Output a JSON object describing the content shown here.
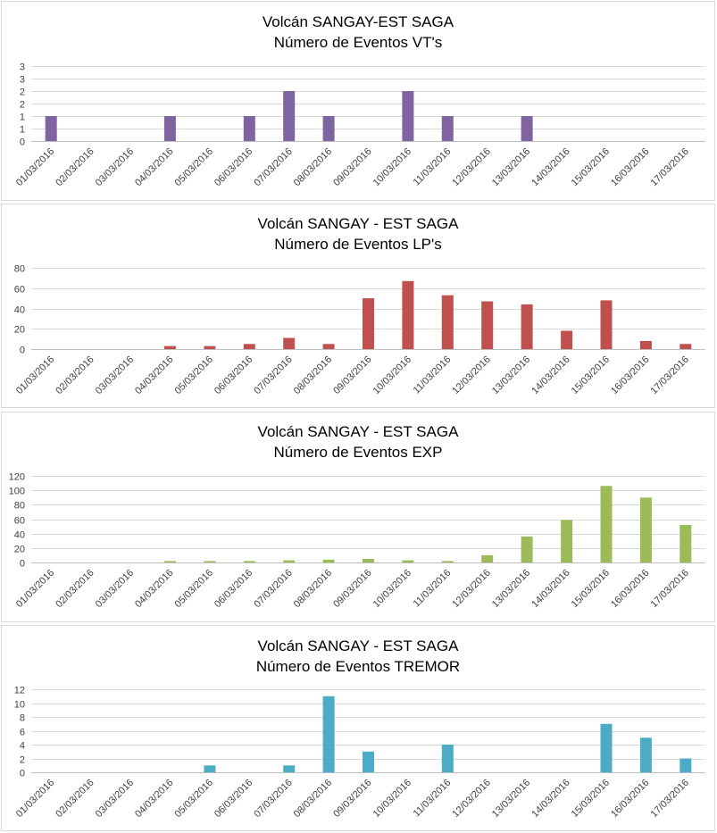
{
  "chart_data": [
    {
      "type": "bar",
      "title": "Volcán SANGAY-EST SAGA",
      "subtitle": "Número de Eventos VT's",
      "categories": [
        "01/03/2016",
        "02/03/2016",
        "03/03/2016",
        "04/03/2016",
        "05/03/2016",
        "06/03/2016",
        "07/03/2016",
        "08/03/2016",
        "09/03/2016",
        "10/03/2016",
        "11/03/2016",
        "12/03/2016",
        "13/03/2016",
        "14/03/2016",
        "15/03/2016",
        "16/03/2016",
        "17/03/2016"
      ],
      "values": [
        1,
        0,
        0,
        1,
        0,
        1,
        2,
        1,
        0,
        2,
        1,
        0,
        1,
        0,
        0,
        0,
        0
      ],
      "ylim": [
        0,
        3
      ],
      "yticks": [
        0,
        0.5,
        1,
        1.5,
        2,
        2.5,
        3
      ],
      "ytick_labels": [
        "0",
        "1",
        "1",
        "2",
        "2",
        "3",
        "3"
      ],
      "color": "#8064A2",
      "grid": true,
      "legend": "none"
    },
    {
      "type": "bar",
      "title": "Volcán SANGAY  - EST SAGA",
      "subtitle": "Número de Eventos LP's",
      "categories": [
        "01/03/2016",
        "02/03/2016",
        "03/03/2016",
        "04/03/2016",
        "05/03/2016",
        "06/03/2016",
        "07/03/2016",
        "08/03/2016",
        "09/03/2016",
        "10/03/2016",
        "11/03/2016",
        "12/03/2016",
        "13/03/2016",
        "14/03/2016",
        "15/03/2016",
        "16/03/2016",
        "17/03/2016"
      ],
      "values": [
        0,
        0,
        0,
        3,
        3,
        5,
        11,
        5,
        50,
        67,
        53,
        47,
        44,
        18,
        48,
        8,
        5
      ],
      "ylim": [
        0,
        80
      ],
      "yticks": [
        0,
        20,
        40,
        60,
        80
      ],
      "ytick_labels": [
        "0",
        "20",
        "40",
        "60",
        "80"
      ],
      "color": "#C0504D",
      "grid": true,
      "legend": "none"
    },
    {
      "type": "bar",
      "title": "Volcán SANGAY - EST SAGA",
      "subtitle": "Número de Eventos EXP",
      "categories": [
        "01/03/2016",
        "02/03/2016",
        "03/03/2016",
        "04/03/2016",
        "05/03/2016",
        "06/03/2016",
        "07/03/2016",
        "08/03/2016",
        "09/03/2016",
        "10/03/2016",
        "11/03/2016",
        "12/03/2016",
        "13/03/2016",
        "14/03/2016",
        "15/03/2016",
        "16/03/2016",
        "17/03/2016"
      ],
      "values": [
        0,
        0,
        0,
        2,
        2,
        2,
        3,
        4,
        5,
        3,
        2,
        10,
        36,
        59,
        106,
        90,
        52
      ],
      "ylim": [
        0,
        120
      ],
      "yticks": [
        0,
        20,
        40,
        60,
        80,
        100,
        120
      ],
      "ytick_labels": [
        "0",
        "20",
        "40",
        "60",
        "80",
        "100",
        "120"
      ],
      "color": "#9BBB59",
      "grid": true,
      "legend": "none"
    },
    {
      "type": "bar",
      "title": "Volcán SANGAY - EST SAGA",
      "subtitle": "Número de Eventos TREMOR",
      "categories": [
        "01/03/2016",
        "02/03/2016",
        "03/03/2016",
        "04/03/2016",
        "05/03/2016",
        "06/03/2016",
        "07/03/2016",
        "08/03/2016",
        "09/03/2016",
        "10/03/2016",
        "11/03/2016",
        "12/03/2016",
        "13/03/2016",
        "14/03/2016",
        "15/03/2016",
        "16/03/2016",
        "17/03/2016"
      ],
      "values": [
        0,
        0,
        0,
        0,
        1,
        0,
        1,
        11,
        3,
        0,
        4,
        0,
        0,
        0,
        7,
        5,
        2
      ],
      "ylim": [
        0,
        12
      ],
      "yticks": [
        0,
        2,
        4,
        6,
        8,
        10,
        12
      ],
      "ytick_labels": [
        "0",
        "2",
        "4",
        "6",
        "8",
        "10",
        "12"
      ],
      "color": "#4BACC6",
      "grid": true,
      "legend": "none"
    }
  ]
}
